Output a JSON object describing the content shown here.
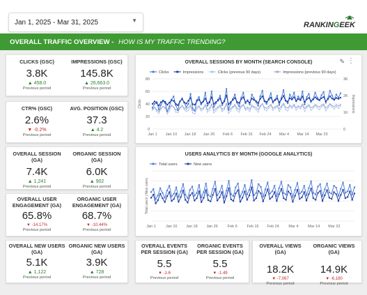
{
  "date_range": {
    "value": "Jan 1, 2025 - Mar 31, 2025"
  },
  "brand": {
    "logo": "RANKINGEEK"
  },
  "banner": {
    "title": "OVERALL TRAFFIC OVERVIEW",
    "separator": " - ",
    "subtitle": "HOW IS MY TRAFFIC TRENDING?"
  },
  "colors": {
    "banner": "#3f9a33",
    "up": "#2e7d32",
    "down": "#c62828",
    "clicks": "#4f7fd9",
    "impressions": "#1f3fa6",
    "clicks_prev": "#a9c4ef",
    "impressions_prev": "#9fa8c8"
  },
  "scorecards": [
    {
      "label": "CLICKS (GSC)",
      "value": "3.8K",
      "delta": "458.0",
      "dir": "up",
      "prev": "Previous period"
    },
    {
      "label": "IMPRESSIONS (GSC)",
      "value": "145.8K",
      "delta": "26,663.0",
      "dir": "up",
      "prev": "Previous period"
    },
    {
      "label": "CTR% (GSC)",
      "value": "2.6%",
      "delta": "-0.2%",
      "dir": "down",
      "prev": "Previous period"
    },
    {
      "label": "AVG. POSITION (GSC)",
      "value": "37.3",
      "delta": "4.2",
      "dir": "up",
      "prev": "Previous period"
    },
    {
      "label": "OVERALL SESSION (GA)",
      "value": "7.4K",
      "delta": "1,241",
      "dir": "up",
      "prev": "Previous period"
    },
    {
      "label": "ORGANIC SESSION (GA)",
      "value": "6.0K",
      "delta": "902",
      "dir": "up",
      "prev": "Previous period"
    },
    {
      "label": "OVERALL USER ENGAGEMENT (GA)",
      "value": "65.8%",
      "delta": "-14.17%",
      "dir": "down",
      "prev": "Previous period"
    },
    {
      "label": "ORGANIC USER ENGAGEMENT (GA)",
      "value": "68.7%",
      "delta": "-10.44%",
      "dir": "down",
      "prev": "Previous period"
    },
    {
      "label": "OVERALL NEW USERS (GA)",
      "value": "5.1K",
      "delta": "1,122",
      "dir": "up",
      "prev": "Previous period"
    },
    {
      "label": "ORGANIC NEW USERS (GA)",
      "value": "3.9K",
      "delta": "728",
      "dir": "up",
      "prev": "Previous period"
    },
    {
      "label": "OVERALL EVENTS PER SESSION (GA)",
      "value": "5.5",
      "delta": "-1.6",
      "dir": "down",
      "prev": "Previous period"
    },
    {
      "label": "ORGANIC EVENTS PER SESSION (GA)",
      "value": "5.5",
      "delta": "-1.49",
      "dir": "down",
      "prev": "Previous period"
    },
    {
      "label": "OVERALL VIEWS (GA)",
      "value": "18.2K",
      "delta": "-7,067",
      "dir": "down",
      "prev": "Previous period"
    },
    {
      "label": "ORGANIC VIEWS (GA)",
      "value": "14.9K",
      "delta": "-6,180",
      "dir": "down",
      "prev": "Previous period"
    }
  ],
  "chart_data": [
    {
      "type": "line",
      "title": "OVERALL SESSIONS BY MONTH (SEARCH CONSOLE)",
      "y_left_label": "Clicks",
      "y_right_label": "Impressions",
      "ylim_left": [
        0,
        80
      ],
      "ylim_right": [
        0,
        3000
      ],
      "yticks_left": [
        "0",
        "20",
        "40",
        "60",
        "80"
      ],
      "yticks_right": [
        "0",
        "1K",
        "2K",
        "3K"
      ],
      "x_tick_labels": [
        "Jan 1",
        "Jan 10",
        "Jan 18",
        "Jan 26",
        "Feb 6",
        "Feb 15",
        "Feb 24",
        "Mar 4",
        "Mar 14",
        "Mar 23"
      ],
      "legend_position": "top",
      "series": [
        {
          "name": "Clicks",
          "axis": "left",
          "color": "#4f7fd9",
          "values": [
            34,
            40,
            43,
            31,
            38,
            45,
            41,
            28,
            36,
            47,
            52,
            38,
            30,
            44,
            49,
            42,
            35,
            40,
            56,
            33,
            29,
            46,
            51,
            39,
            44,
            58,
            37,
            42,
            60,
            35,
            41,
            47,
            53,
            38,
            45,
            64,
            31,
            40,
            48,
            55,
            42,
            36,
            50,
            58,
            41,
            46,
            39,
            55,
            49,
            43,
            37,
            52,
            61,
            44,
            40,
            48,
            57,
            42,
            47,
            53,
            38,
            50,
            62,
            45,
            41,
            55,
            49,
            58,
            44,
            52,
            47,
            60,
            39,
            51,
            56,
            43,
            48,
            58,
            50,
            46,
            54,
            59,
            42,
            49,
            61,
            53,
            47,
            55,
            50,
            57
          ]
        },
        {
          "name": "Impressions",
          "axis": "right",
          "color": "#1f3fa6",
          "values": [
            1500,
            1650,
            1550,
            1400,
            1600,
            1700,
            1620,
            1450,
            1580,
            1720,
            1680,
            1500,
            1420,
            1650,
            1780,
            1600,
            1520,
            1700,
            1850,
            1480,
            1450,
            1680,
            1760,
            1560,
            1640,
            1820,
            1540,
            1620,
            1900,
            1500,
            1600,
            1700,
            1820,
            1540,
            1650,
            2000,
            1480,
            1600,
            1740,
            1860,
            1620,
            1560,
            1780,
            1900,
            1600,
            1680,
            1580,
            1820,
            1740,
            1660,
            1560,
            1800,
            1960,
            1680,
            1620,
            1760,
            1880,
            1640,
            1720,
            1820,
            1600,
            1780,
            1980,
            1700,
            1640,
            1840,
            1760,
            1900,
            1680,
            1800,
            1720,
            1940,
            1620,
            1780,
            1860,
            1680,
            1760,
            1900,
            1780,
            1720,
            1840,
            1920,
            1660,
            1780,
            1960,
            1820,
            1740,
            1860,
            1800,
            1880
          ]
        },
        {
          "name": "Clicks (previous 90 days)",
          "axis": "left",
          "color": "#a9c4ef",
          "values": [
            30,
            34,
            28,
            25,
            32,
            36,
            33,
            24,
            29,
            38,
            35,
            27,
            26,
            33,
            37,
            31,
            28,
            30,
            36,
            26,
            24,
            32,
            35,
            29,
            31,
            38,
            27,
            30,
            39,
            26,
            29,
            33,
            36,
            28,
            31,
            40,
            25,
            29,
            34,
            37,
            30,
            27,
            35,
            38,
            30,
            32,
            28,
            36,
            34,
            31,
            27,
            35,
            40,
            31,
            29,
            33,
            38,
            30,
            33,
            36,
            28,
            34,
            39,
            31,
            29,
            36,
            33,
            37,
            30,
            35,
            32,
            38,
            28,
            34,
            37,
            30,
            33,
            37,
            34,
            31,
            35,
            38,
            29,
            33,
            39,
            35,
            32,
            36,
            33,
            37
          ]
        },
        {
          "name": "Impressions (previous 90 days)",
          "axis": "right",
          "color": "#9fa8c8",
          "values": [
            1200,
            1300,
            1150,
            1050,
            1250,
            1350,
            1280,
            1100,
            1220,
            1380,
            1320,
            1150,
            1100,
            1280,
            1400,
            1260,
            1180,
            1300,
            1420,
            1120,
            1080,
            1300,
            1380,
            1200,
            1260,
            1440,
            1160,
            1240,
            1480,
            1120,
            1220,
            1320,
            1420,
            1180,
            1260,
            1520,
            1100,
            1220,
            1340,
            1440,
            1240,
            1180,
            1380,
            1460,
            1220,
            1300,
            1200,
            1420,
            1340,
            1280,
            1180,
            1380,
            1500,
            1280,
            1240,
            1360,
            1460,
            1260,
            1320,
            1400,
            1220,
            1360,
            1520,
            1300,
            1260,
            1420,
            1340,
            1460,
            1280,
            1380,
            1320,
            1480,
            1240,
            1360,
            1440,
            1280,
            1340,
            1460,
            1380,
            1320,
            1420,
            1480,
            1260,
            1360,
            1500,
            1400,
            1340,
            1440,
            1380,
            1460
          ]
        }
      ]
    },
    {
      "type": "line",
      "title": "USERS ANALYTICS BY MONTH (GOOGLE ANALYTICS)",
      "y_left_label": "Total users | New users",
      "ylim_left": [
        0,
        125
      ],
      "x_tick_labels": [
        "Jan 1",
        "Jan 10",
        "Jan 18",
        "Jan 26",
        "Feb 6",
        "Feb 15",
        "Feb 24",
        "Mar 4",
        "Mar 14",
        "Mar 23"
      ],
      "legend_position": "top",
      "series": [
        {
          "name": "Total users",
          "color": "#4f7fd9",
          "values": [
            72,
            80,
            55,
            64,
            82,
            70,
            58,
            76,
            88,
            62,
            68,
            84,
            60,
            74,
            92,
            66,
            57,
            78,
            86,
            63,
            70,
            90,
            59,
            72,
            94,
            65,
            61,
            80,
            98,
            64,
            73,
            88,
            58,
            76,
            100,
            67,
            62,
            84,
            94,
            60,
            72,
            90,
            66,
            78,
            102,
            64,
            70,
            92,
            85,
            61,
            79,
            96,
            68,
            74,
            88,
            62,
            82,
            98,
            70,
            66,
            90,
            84,
            60,
            78,
            95,
            68,
            73,
            88,
            64,
            82,
            99,
            70,
            66,
            86,
            92,
            62,
            79,
            94,
            71,
            68,
            88,
            83,
            62,
            80,
            96,
            70,
            74,
            90,
            66,
            84
          ]
        },
        {
          "name": "New users",
          "color": "#1f3fa6",
          "values": [
            58,
            66,
            44,
            52,
            68,
            57,
            47,
            62,
            72,
            50,
            55,
            69,
            48,
            60,
            76,
            53,
            46,
            64,
            70,
            51,
            57,
            74,
            47,
            58,
            77,
            52,
            49,
            65,
            80,
            51,
            59,
            72,
            46,
            62,
            82,
            54,
            50,
            69,
            77,
            48,
            58,
            74,
            53,
            64,
            84,
            51,
            57,
            75,
            69,
            49,
            64,
            79,
            55,
            60,
            72,
            50,
            67,
            80,
            57,
            53,
            74,
            68,
            48,
            63,
            78,
            55,
            59,
            72,
            51,
            67,
            81,
            57,
            53,
            70,
            75,
            50,
            64,
            77,
            58,
            55,
            72,
            67,
            50,
            65,
            78,
            57,
            60,
            74,
            53,
            69
          ]
        }
      ]
    }
  ]
}
